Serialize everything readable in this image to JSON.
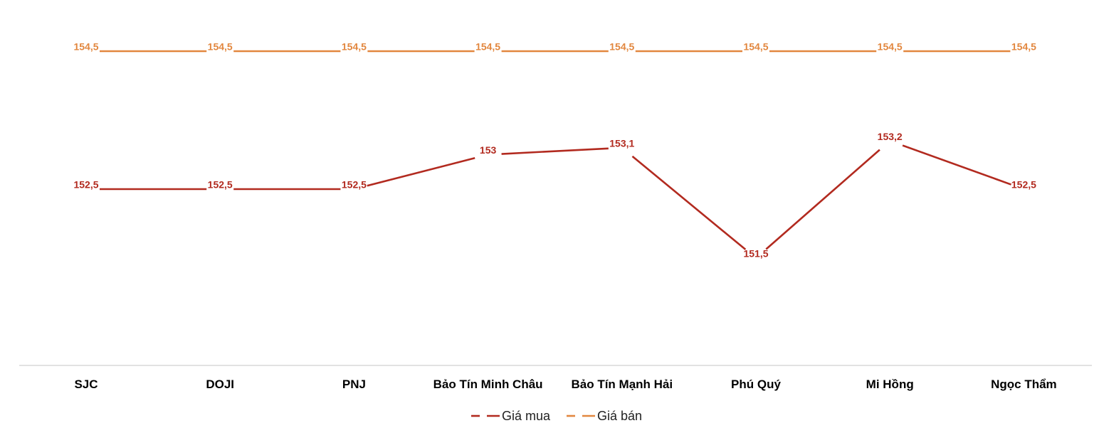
{
  "chart_data": {
    "type": "line",
    "categories": [
      "SJC",
      "DOJI",
      "PNJ",
      "Bảo Tín Minh Châu",
      "Bảo Tín Mạnh Hải",
      "Phú Quý",
      "Mi Hồng",
      "Ngọc Thẩm"
    ],
    "series": [
      {
        "name": "Giá mua",
        "color": "#B22A1F",
        "values": [
          152.5,
          152.5,
          152.5,
          153,
          153.1,
          151.5,
          153.2,
          152.5
        ],
        "labels": [
          "152,5",
          "152,5",
          "152,5",
          "153",
          "153,1",
          "151,5",
          "153,2",
          "152,5"
        ]
      },
      {
        "name": "Giá bán",
        "color": "#E2873F",
        "values": [
          154.5,
          154.5,
          154.5,
          154.5,
          154.5,
          154.5,
          154.5,
          154.5
        ],
        "labels": [
          "154,5",
          "154,5",
          "154,5",
          "154,5",
          "154,5",
          "154,5",
          "154,5",
          "154,5"
        ]
      }
    ],
    "title": "",
    "xlabel": "",
    "ylabel": "",
    "ylim": [
      150,
      155
    ],
    "grid": false,
    "legend_position": "bottom-center"
  }
}
